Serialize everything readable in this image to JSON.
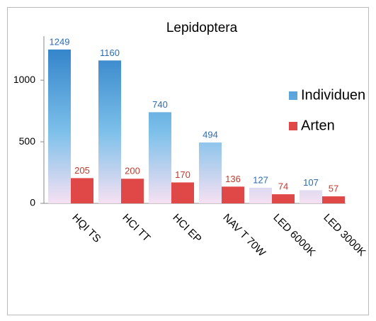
{
  "chart_data": {
    "type": "bar",
    "title": "Lepidoptera",
    "categories": [
      "HQI TS",
      "HCI TT",
      "HCI EP",
      "NAV T 70W",
      "LED 6000K",
      "LED 3000K"
    ],
    "series": [
      {
        "name": "Individuen",
        "color": "#2f80c8",
        "values": [
          1249,
          1160,
          740,
          494,
          127,
          107
        ]
      },
      {
        "name": "Arten",
        "color": "#e04848",
        "values": [
          205,
          200,
          170,
          136,
          74,
          57
        ]
      }
    ],
    "ylim": [
      0,
      1300
    ],
    "yticks": [
      0,
      500,
      1000
    ],
    "grid": false,
    "legend": "right"
  }
}
